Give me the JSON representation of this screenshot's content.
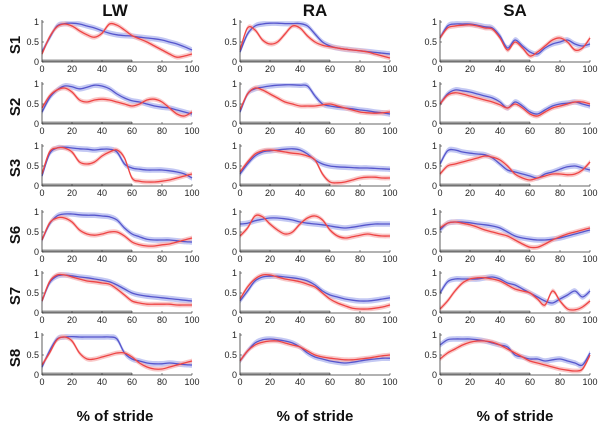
{
  "figure": {
    "columns": [
      "LW",
      "RA",
      "SA"
    ],
    "rows": [
      "S1",
      "S2",
      "S3",
      "S6",
      "S7",
      "S8"
    ],
    "xlabel": "% of stride",
    "colors": {
      "series_a": "#5555cc",
      "band_a": "#aab0ee",
      "series_b": "#ee4444",
      "band_b": "#f6b0b0",
      "stance_bar": "#999999",
      "axis": "#333333"
    }
  },
  "chart_data": {
    "type": "line",
    "grid": false,
    "xlim": [
      0,
      100
    ],
    "ylim": [
      0,
      1
    ],
    "xticks": [
      "0",
      "20",
      "40",
      "60",
      "80",
      "100"
    ],
    "yticks": [
      "0",
      "0.5",
      "1"
    ],
    "stance_bar": [
      0,
      60
    ],
    "x": [
      0,
      5,
      10,
      15,
      20,
      25,
      30,
      35,
      40,
      45,
      50,
      55,
      60,
      65,
      70,
      75,
      80,
      85,
      90,
      95,
      100
    ],
    "panels": [
      {
        "row": "S1",
        "col": "LW",
        "a": [
          0.25,
          0.6,
          0.9,
          0.96,
          0.97,
          0.95,
          0.9,
          0.85,
          0.78,
          0.72,
          0.68,
          0.66,
          0.65,
          0.62,
          0.6,
          0.58,
          0.55,
          0.5,
          0.45,
          0.38,
          0.3
        ],
        "b": [
          0.2,
          0.62,
          0.88,
          0.95,
          0.9,
          0.78,
          0.68,
          0.62,
          0.72,
          0.95,
          0.92,
          0.8,
          0.66,
          0.58,
          0.5,
          0.4,
          0.3,
          0.2,
          0.12,
          0.15,
          0.2
        ]
      },
      {
        "row": "S1",
        "col": "RA",
        "a": [
          0.25,
          0.7,
          0.9,
          0.95,
          0.97,
          0.97,
          0.96,
          0.96,
          0.96,
          0.9,
          0.7,
          0.5,
          0.4,
          0.35,
          0.32,
          0.3,
          0.28,
          0.26,
          0.24,
          0.22,
          0.2
        ],
        "b": [
          0.3,
          0.85,
          0.8,
          0.55,
          0.45,
          0.5,
          0.7,
          0.9,
          0.85,
          0.65,
          0.5,
          0.42,
          0.38,
          0.35,
          0.32,
          0.3,
          0.28,
          0.25,
          0.2,
          0.15,
          0.1
        ]
      },
      {
        "row": "S1",
        "col": "SA",
        "a": [
          0.6,
          0.9,
          0.95,
          0.95,
          0.95,
          0.92,
          0.88,
          0.85,
          0.65,
          0.35,
          0.55,
          0.4,
          0.25,
          0.2,
          0.35,
          0.45,
          0.5,
          0.55,
          0.45,
          0.4,
          0.45
        ],
        "b": [
          0.6,
          0.85,
          0.9,
          0.92,
          0.93,
          0.9,
          0.85,
          0.82,
          0.6,
          0.3,
          0.5,
          0.35,
          0.15,
          0.25,
          0.4,
          0.55,
          0.6,
          0.5,
          0.3,
          0.35,
          0.6
        ]
      },
      {
        "row": "S2",
        "col": "LW",
        "a": [
          0.3,
          0.65,
          0.85,
          0.95,
          0.93,
          0.88,
          0.92,
          0.97,
          0.95,
          0.88,
          0.75,
          0.65,
          0.58,
          0.55,
          0.5,
          0.45,
          0.42,
          0.4,
          0.35,
          0.3,
          0.25
        ],
        "b": [
          0.4,
          0.7,
          0.85,
          0.9,
          0.8,
          0.6,
          0.55,
          0.6,
          0.62,
          0.6,
          0.55,
          0.5,
          0.45,
          0.5,
          0.6,
          0.62,
          0.55,
          0.4,
          0.25,
          0.2,
          0.3
        ]
      },
      {
        "row": "S2",
        "col": "RA",
        "a": [
          0.3,
          0.75,
          0.88,
          0.92,
          0.95,
          0.97,
          0.98,
          0.98,
          0.97,
          0.95,
          0.7,
          0.5,
          0.45,
          0.42,
          0.4,
          0.38,
          0.35,
          0.33,
          0.3,
          0.28,
          0.25
        ],
        "b": [
          0.35,
          0.75,
          0.9,
          0.85,
          0.75,
          0.65,
          0.55,
          0.5,
          0.45,
          0.45,
          0.45,
          0.48,
          0.5,
          0.45,
          0.4,
          0.35,
          0.3,
          0.28,
          0.27,
          0.28,
          0.3
        ]
      },
      {
        "row": "S2",
        "col": "SA",
        "a": [
          0.5,
          0.75,
          0.85,
          0.83,
          0.8,
          0.75,
          0.7,
          0.65,
          0.55,
          0.4,
          0.55,
          0.45,
          0.3,
          0.25,
          0.35,
          0.45,
          0.5,
          0.52,
          0.55,
          0.5,
          0.45
        ],
        "b": [
          0.5,
          0.72,
          0.78,
          0.75,
          0.7,
          0.65,
          0.6,
          0.55,
          0.48,
          0.4,
          0.5,
          0.4,
          0.25,
          0.2,
          0.3,
          0.4,
          0.45,
          0.5,
          0.55,
          0.55,
          0.5
        ]
      },
      {
        "row": "S3",
        "col": "LW",
        "a": [
          0.25,
          0.8,
          0.95,
          0.97,
          0.95,
          0.93,
          0.92,
          0.9,
          0.92,
          0.92,
          0.85,
          0.55,
          0.45,
          0.42,
          0.4,
          0.4,
          0.4,
          0.38,
          0.35,
          0.3,
          0.2
        ],
        "b": [
          0.3,
          0.85,
          0.95,
          0.95,
          0.85,
          0.6,
          0.55,
          0.6,
          0.75,
          0.85,
          0.9,
          0.7,
          0.2,
          0.12,
          0.1,
          0.1,
          0.12,
          0.15,
          0.2,
          0.25,
          0.3
        ]
      },
      {
        "row": "S3",
        "col": "RA",
        "a": [
          0.3,
          0.55,
          0.75,
          0.85,
          0.88,
          0.9,
          0.92,
          0.93,
          0.9,
          0.8,
          0.65,
          0.55,
          0.5,
          0.48,
          0.47,
          0.46,
          0.45,
          0.45,
          0.44,
          0.43,
          0.42
        ],
        "b": [
          0.35,
          0.6,
          0.8,
          0.88,
          0.9,
          0.88,
          0.85,
          0.82,
          0.8,
          0.75,
          0.65,
          0.3,
          0.1,
          0.08,
          0.1,
          0.15,
          0.2,
          0.22,
          0.22,
          0.2,
          0.2
        ]
      },
      {
        "row": "S3",
        "col": "SA",
        "a": [
          0.55,
          0.88,
          0.9,
          0.85,
          0.82,
          0.8,
          0.78,
          0.7,
          0.55,
          0.4,
          0.35,
          0.3,
          0.25,
          0.2,
          0.3,
          0.35,
          0.42,
          0.48,
          0.5,
          0.45,
          0.4
        ],
        "b": [
          0.3,
          0.5,
          0.55,
          0.6,
          0.65,
          0.7,
          0.75,
          0.72,
          0.65,
          0.5,
          0.3,
          0.2,
          0.15,
          0.2,
          0.25,
          0.3,
          0.3,
          0.28,
          0.3,
          0.4,
          0.6
        ]
      },
      {
        "row": "S6",
        "col": "LW",
        "a": [
          0.3,
          0.7,
          0.9,
          0.95,
          0.95,
          0.93,
          0.92,
          0.92,
          0.9,
          0.88,
          0.8,
          0.6,
          0.45,
          0.38,
          0.32,
          0.3,
          0.3,
          0.3,
          0.28,
          0.26,
          0.25
        ],
        "b": [
          0.3,
          0.72,
          0.85,
          0.85,
          0.75,
          0.55,
          0.45,
          0.42,
          0.45,
          0.5,
          0.5,
          0.4,
          0.25,
          0.18,
          0.15,
          0.15,
          0.18,
          0.2,
          0.25,
          0.3,
          0.35
        ]
      },
      {
        "row": "S6",
        "col": "RA",
        "a": [
          0.7,
          0.72,
          0.78,
          0.82,
          0.85,
          0.85,
          0.83,
          0.8,
          0.75,
          0.72,
          0.7,
          0.68,
          0.65,
          0.62,
          0.6,
          0.62,
          0.65,
          0.68,
          0.7,
          0.7,
          0.7
        ],
        "b": [
          0.4,
          0.6,
          0.9,
          0.88,
          0.7,
          0.55,
          0.45,
          0.5,
          0.7,
          0.85,
          0.9,
          0.8,
          0.55,
          0.4,
          0.35,
          0.38,
          0.42,
          0.45,
          0.42,
          0.4,
          0.4
        ]
      },
      {
        "row": "S6",
        "col": "SA",
        "a": [
          0.55,
          0.72,
          0.75,
          0.75,
          0.73,
          0.7,
          0.68,
          0.65,
          0.6,
          0.5,
          0.4,
          0.35,
          0.32,
          0.3,
          0.3,
          0.32,
          0.35,
          0.4,
          0.45,
          0.5,
          0.55
        ],
        "b": [
          0.6,
          0.72,
          0.75,
          0.72,
          0.68,
          0.62,
          0.55,
          0.5,
          0.45,
          0.4,
          0.3,
          0.2,
          0.12,
          0.12,
          0.2,
          0.3,
          0.38,
          0.45,
          0.5,
          0.55,
          0.6
        ]
      },
      {
        "row": "S7",
        "col": "LW",
        "a": [
          0.3,
          0.75,
          0.92,
          0.95,
          0.93,
          0.9,
          0.88,
          0.85,
          0.82,
          0.78,
          0.7,
          0.6,
          0.5,
          0.45,
          0.42,
          0.4,
          0.38,
          0.36,
          0.34,
          0.32,
          0.3
        ],
        "b": [
          0.3,
          0.78,
          0.95,
          0.95,
          0.9,
          0.85,
          0.8,
          0.78,
          0.75,
          0.72,
          0.6,
          0.45,
          0.3,
          0.25,
          0.22,
          0.22,
          0.22,
          0.22,
          0.2,
          0.2,
          0.2
        ]
      },
      {
        "row": "S7",
        "col": "RA",
        "a": [
          0.3,
          0.55,
          0.8,
          0.9,
          0.92,
          0.92,
          0.9,
          0.88,
          0.85,
          0.8,
          0.7,
          0.55,
          0.45,
          0.4,
          0.35,
          0.32,
          0.3,
          0.3,
          0.32,
          0.35,
          0.38
        ],
        "b": [
          0.35,
          0.65,
          0.85,
          0.95,
          0.95,
          0.9,
          0.85,
          0.82,
          0.78,
          0.72,
          0.65,
          0.5,
          0.35,
          0.25,
          0.18,
          0.12,
          0.1,
          0.1,
          0.12,
          0.15,
          0.2
        ]
      },
      {
        "row": "S7",
        "col": "SA",
        "a": [
          0.5,
          0.78,
          0.85,
          0.85,
          0.85,
          0.85,
          0.88,
          0.9,
          0.85,
          0.75,
          0.7,
          0.6,
          0.5,
          0.4,
          0.3,
          0.25,
          0.35,
          0.45,
          0.55,
          0.4,
          0.55
        ],
        "b": [
          0.1,
          0.3,
          0.55,
          0.75,
          0.85,
          0.88,
          0.88,
          0.85,
          0.8,
          0.7,
          0.6,
          0.55,
          0.5,
          0.35,
          0.2,
          0.55,
          0.3,
          0.1,
          0.08,
          0.15,
          0.3
        ]
      },
      {
        "row": "S8",
        "col": "LW",
        "a": [
          0.2,
          0.6,
          0.9,
          0.95,
          0.96,
          0.95,
          0.95,
          0.95,
          0.95,
          0.95,
          0.9,
          0.55,
          0.4,
          0.35,
          0.3,
          0.28,
          0.28,
          0.3,
          0.28,
          0.26,
          0.25
        ],
        "b": [
          0.25,
          0.55,
          0.88,
          0.95,
          0.85,
          0.55,
          0.4,
          0.4,
          0.45,
          0.5,
          0.55,
          0.55,
          0.45,
          0.3,
          0.2,
          0.15,
          0.15,
          0.2,
          0.25,
          0.3,
          0.35
        ]
      },
      {
        "row": "S8",
        "col": "RA",
        "a": [
          0.35,
          0.6,
          0.8,
          0.88,
          0.9,
          0.88,
          0.85,
          0.8,
          0.7,
          0.55,
          0.45,
          0.4,
          0.35,
          0.32,
          0.3,
          0.32,
          0.35,
          0.38,
          0.4,
          0.42,
          0.42
        ],
        "b": [
          0.35,
          0.6,
          0.75,
          0.82,
          0.85,
          0.85,
          0.8,
          0.75,
          0.7,
          0.6,
          0.5,
          0.45,
          0.42,
          0.4,
          0.38,
          0.38,
          0.4,
          0.42,
          0.45,
          0.48,
          0.5
        ]
      },
      {
        "row": "S8",
        "col": "SA",
        "a": [
          0.75,
          0.88,
          0.9,
          0.9,
          0.9,
          0.88,
          0.85,
          0.8,
          0.75,
          0.7,
          0.5,
          0.45,
          0.4,
          0.4,
          0.35,
          0.38,
          0.4,
          0.35,
          0.3,
          0.25,
          0.55
        ],
        "b": [
          0.4,
          0.55,
          0.65,
          0.75,
          0.82,
          0.85,
          0.85,
          0.82,
          0.75,
          0.65,
          0.55,
          0.45,
          0.35,
          0.3,
          0.25,
          0.2,
          0.15,
          0.12,
          0.1,
          0.15,
          0.5
        ]
      }
    ]
  }
}
